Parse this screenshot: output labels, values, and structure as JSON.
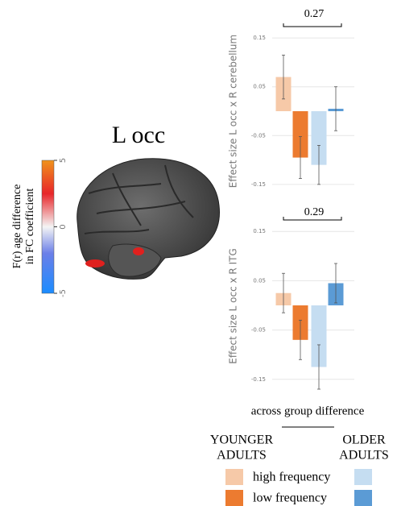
{
  "title": "L occ",
  "colorbar": {
    "label_lines": [
      "F(r) age difference",
      "in FC coefficient"
    ],
    "lim": [
      -5,
      5
    ],
    "ticks": [
      5,
      0,
      -5
    ]
  },
  "chart_data": [
    {
      "type": "bar",
      "ylabel": "Effect size L occ x R cerebellum",
      "annotation": "0.27",
      "values": [
        0.07,
        -0.095,
        -0.11,
        0.005
      ],
      "errors": [
        0.045,
        0.043,
        0.04,
        0.045
      ],
      "colors": [
        "#f6c9a8",
        "#ec7b30",
        "#c5ddf1",
        "#5b9bd5"
      ],
      "ylim": [
        -0.17,
        0.17
      ],
      "yticks": [
        0.15,
        0.05,
        -0.05,
        -0.15
      ],
      "grid": true
    },
    {
      "type": "bar",
      "ylabel": "Effect size  L occ x R ITG",
      "annotation": "0.29",
      "values": [
        0.025,
        -0.07,
        -0.125,
        0.045
      ],
      "errors": [
        0.04,
        0.04,
        0.045,
        0.04
      ],
      "colors": [
        "#f6c9a8",
        "#ec7b30",
        "#c5ddf1",
        "#5b9bd5"
      ],
      "ylim": [
        -0.17,
        0.17
      ],
      "yticks": [
        0.15,
        0.05,
        -0.05,
        -0.15
      ],
      "grid": true
    }
  ],
  "legend": {
    "title": "across group difference",
    "columns": [
      [
        "YOUNGER",
        "ADULTS"
      ],
      [
        "OLDER",
        "ADULTS"
      ]
    ],
    "rows": [
      "high frequency",
      "low frequency"
    ],
    "colors": [
      [
        "#f6c9a8",
        "#c5ddf1"
      ],
      [
        "#ec7b30",
        "#5b9bd5"
      ]
    ]
  }
}
